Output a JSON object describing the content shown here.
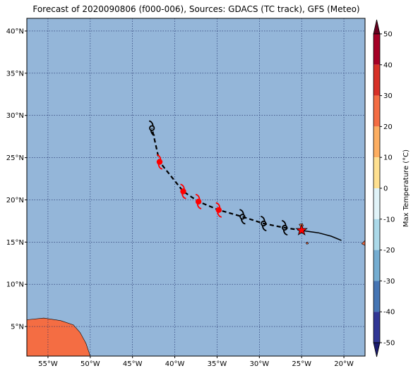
{
  "title": "Forecast of 2020090806 (f000-006), Sources: GDACS (TC track), GFS (Meteo)",
  "colors": {
    "ocean": "#94b6d9",
    "land": "#f46d43",
    "track": "#000000",
    "forecast_marker": "#ff0000",
    "current_marker": "#ff0000"
  },
  "map": {
    "lon_range": [
      -57.5,
      -17.5
    ],
    "lat_range": [
      1.5,
      41.5
    ],
    "lon_ticks": [
      {
        "value": -55,
        "label": "55°W"
      },
      {
        "value": -50,
        "label": "50°W"
      },
      {
        "value": -45,
        "label": "45°W"
      },
      {
        "value": -40,
        "label": "40°W"
      },
      {
        "value": -35,
        "label": "35°W"
      },
      {
        "value": -30,
        "label": "30°W"
      },
      {
        "value": -25,
        "label": "25°W"
      },
      {
        "value": -20,
        "label": "20°W"
      }
    ],
    "lat_ticks": [
      {
        "value": 5,
        "label": "5°N"
      },
      {
        "value": 10,
        "label": "10°N"
      },
      {
        "value": 15,
        "label": "15°N"
      },
      {
        "value": 20,
        "label": "20°N"
      },
      {
        "value": 25,
        "label": "25°N"
      },
      {
        "value": 30,
        "label": "30°N"
      },
      {
        "value": 35,
        "label": "35°N"
      },
      {
        "value": 40,
        "label": "40°N"
      }
    ],
    "grid": true,
    "history_track": [
      {
        "lon": -20.3,
        "lat": 15.2
      },
      {
        "lon": -21.5,
        "lat": 15.7
      },
      {
        "lon": -23.0,
        "lat": 16.1
      },
      {
        "lon": -24.5,
        "lat": 16.3
      }
    ],
    "current_position": {
      "lon": -25.0,
      "lat": 16.4,
      "marker": "star"
    },
    "forecast_points": [
      {
        "lon": -27.0,
        "lat": 16.7,
        "symbol": "tropical-storm-icon",
        "color": "black"
      },
      {
        "lon": -29.5,
        "lat": 17.2,
        "symbol": "tropical-storm-icon",
        "color": "black"
      },
      {
        "lon": -32.0,
        "lat": 18.0,
        "symbol": "tropical-storm-icon",
        "color": "black"
      },
      {
        "lon": -34.8,
        "lat": 18.8,
        "symbol": "hurricane-icon",
        "color": "red"
      },
      {
        "lon": -37.2,
        "lat": 19.8,
        "symbol": "hurricane-icon",
        "color": "red"
      },
      {
        "lon": -39.0,
        "lat": 21.0,
        "symbol": "hurricane-icon",
        "color": "red"
      },
      {
        "lon": -41.8,
        "lat": 24.5,
        "symbol": "hurricane-icon",
        "color": "red"
      },
      {
        "lon": -42.7,
        "lat": 28.5,
        "symbol": "tropical-storm-icon",
        "color": "black"
      }
    ],
    "land_masses": [
      {
        "name": "south-america-coast",
        "points": [
          [
            -57.5,
            1.5
          ],
          [
            -57.5,
            5.8
          ],
          [
            -55.5,
            6.0
          ],
          [
            -53.5,
            5.7
          ],
          [
            -52.0,
            5.2
          ],
          [
            -51.2,
            4.3
          ],
          [
            -50.5,
            3.0
          ],
          [
            -50.0,
            1.5
          ]
        ]
      },
      {
        "name": "cape-verde-santo-antao",
        "points": [
          [
            -25.3,
            17.1
          ],
          [
            -24.9,
            17.2
          ],
          [
            -24.8,
            16.9
          ],
          [
            -25.1,
            16.8
          ]
        ]
      },
      {
        "name": "cape-verde-fogo",
        "points": [
          [
            -24.5,
            14.9
          ],
          [
            -24.3,
            15.0
          ],
          [
            -24.2,
            14.8
          ],
          [
            -24.4,
            14.75
          ]
        ]
      },
      {
        "name": "africa-coast",
        "points": [
          [
            -17.5,
            14.6
          ],
          [
            -17.9,
            14.8
          ],
          [
            -17.5,
            15.2
          ]
        ]
      }
    ]
  },
  "colorbar": {
    "label": "Max Temperature (°C)",
    "range": [
      -50,
      50
    ],
    "ticks": [
      50,
      40,
      30,
      20,
      10,
      0,
      -10,
      -20,
      -30,
      -40,
      -50
    ],
    "bands": [
      {
        "from": 40,
        "to": 50,
        "color": "#a50026"
      },
      {
        "from": 30,
        "to": 40,
        "color": "#d73027"
      },
      {
        "from": 20,
        "to": 30,
        "color": "#f46d43"
      },
      {
        "from": 10,
        "to": 20,
        "color": "#fdae61"
      },
      {
        "from": 0,
        "to": 10,
        "color": "#fee090"
      },
      {
        "from": -10,
        "to": 0,
        "color": "#e0f3f8"
      },
      {
        "from": -20,
        "to": -10,
        "color": "#abd9e9"
      },
      {
        "from": -30,
        "to": -20,
        "color": "#74add1"
      },
      {
        "from": -40,
        "to": -30,
        "color": "#4575b4"
      },
      {
        "from": -50,
        "to": -40,
        "color": "#313695"
      }
    ],
    "extend_top_color": "#67001f",
    "extend_bottom_color": "#1a1a6e"
  }
}
